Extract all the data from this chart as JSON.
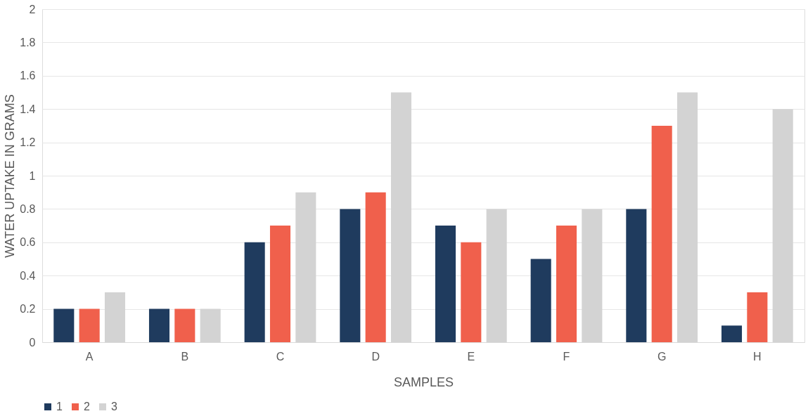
{
  "chart_data": {
    "type": "bar",
    "xlabel": "SAMPLES",
    "ylabel": "WATER UPTAKE IN GRAMS",
    "categories": [
      "A",
      "B",
      "C",
      "D",
      "E",
      "F",
      "G",
      "H"
    ],
    "series": [
      {
        "name": "1",
        "color": "#1f3b5e",
        "values": [
          0.2,
          0.2,
          0.6,
          0.8,
          0.7,
          0.5,
          0.8,
          0.1
        ]
      },
      {
        "name": "2",
        "color": "#f0604c",
        "values": [
          0.2,
          0.2,
          0.7,
          0.9,
          0.6,
          0.7,
          1.3,
          0.3
        ]
      },
      {
        "name": "3",
        "color": "#d3d3d3",
        "values": [
          0.3,
          0.2,
          0.9,
          1.5,
          0.8,
          0.8,
          1.5,
          1.4
        ]
      }
    ],
    "ylim": [
      0,
      2
    ],
    "yticks": [
      0,
      0.2,
      0.4,
      0.6,
      0.8,
      1,
      1.2,
      1.4,
      1.6,
      1.8,
      2
    ],
    "grid": "y",
    "legend": "bottom"
  }
}
